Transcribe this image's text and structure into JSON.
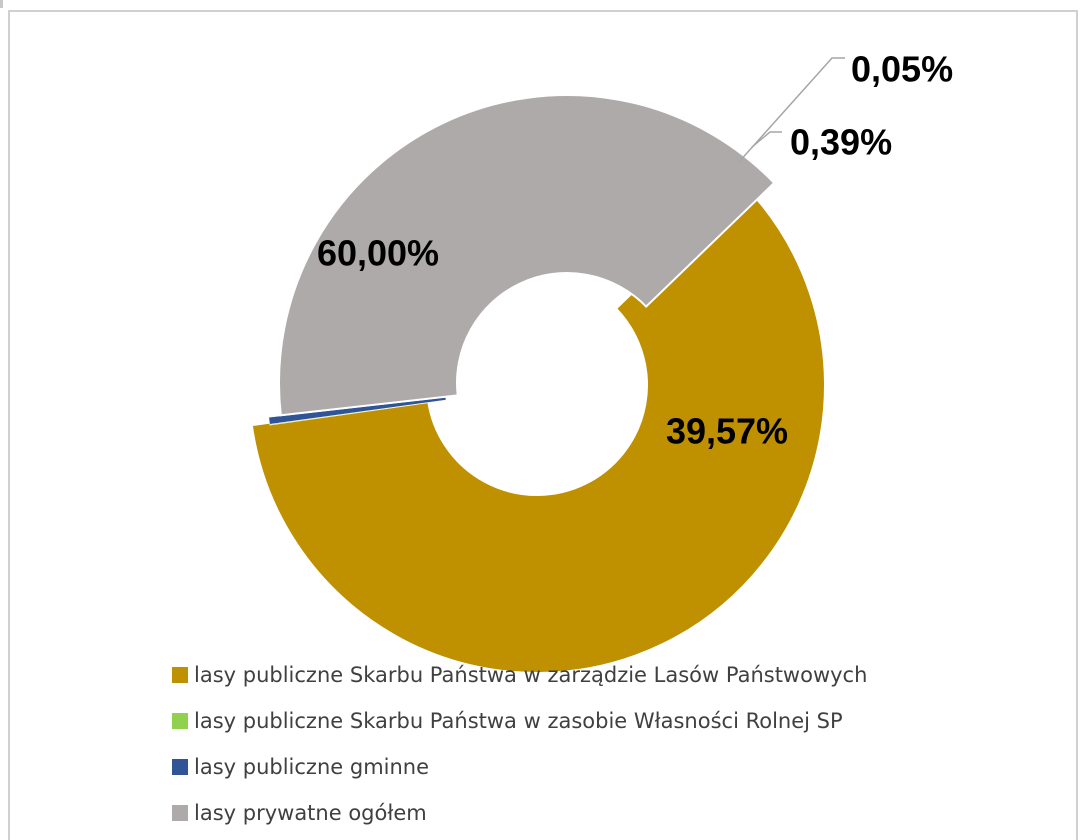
{
  "chart_data": {
    "type": "pie",
    "variant": "donut",
    "title": "",
    "series": [
      {
        "name": "lasy publiczne Skarbu Państwa w zarządzie Lasów Państwowych",
        "value": 60.0,
        "label": "60,00%",
        "color": "#bf9000"
      },
      {
        "name": "lasy publiczne Skarbu Państwa w zasobie Własności Rolnej SP",
        "value": 0.05,
        "label": "0,05%",
        "color": "#92d050"
      },
      {
        "name": "lasy publiczne gminne",
        "value": 0.39,
        "label": "0,39%",
        "color": "#2f5597"
      },
      {
        "name": "lasy prywatne ogółem",
        "value": 39.57,
        "label": "39,57%",
        "color": "#aeaaaa"
      }
    ],
    "legend_position": "bottom"
  }
}
